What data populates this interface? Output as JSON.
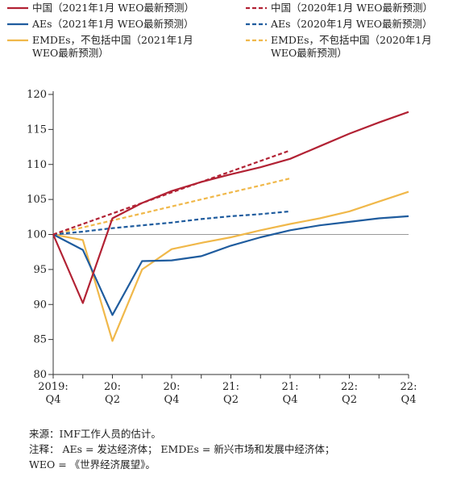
{
  "legend": [
    {
      "label": "中国（2021年1月 WEO最新预测）",
      "color": "#B22234",
      "dash": false
    },
    {
      "label": "中国（2020年1月 WEO最新预测）",
      "color": "#B22234",
      "dash": true
    },
    {
      "label": "AEs（2021年1月 WEO最新预测）",
      "color": "#1F5C9E",
      "dash": false
    },
    {
      "label": "AEs（2020年1月 WEO最新预测）",
      "color": "#1F5C9E",
      "dash": true
    },
    {
      "label": "EMDEs，不包括中国（2021年1月\nWEO最新预测）",
      "color": "#F0B84A",
      "dash": false
    },
    {
      "label": "EMDEs，不包括中国（2020年1月\nWEO最新预测）",
      "color": "#F0B84A",
      "dash": true
    }
  ],
  "chart_data": {
    "type": "line",
    "x": [
      "2019:Q4",
      "20:Q1",
      "20:Q2",
      "20:Q3",
      "20:Q4",
      "21:Q1",
      "21:Q2",
      "21:Q3",
      "21:Q4",
      "22:Q1",
      "22:Q2",
      "22:Q3",
      "22:Q4"
    ],
    "x_tick_labels": [
      {
        "index": 0,
        "top": "2019:",
        "bottom": "Q4"
      },
      {
        "index": 2,
        "top": "20:",
        "bottom": "Q2"
      },
      {
        "index": 4,
        "top": "20:",
        "bottom": "Q4"
      },
      {
        "index": 6,
        "top": "21:",
        "bottom": "Q2"
      },
      {
        "index": 8,
        "top": "21:",
        "bottom": "Q4"
      },
      {
        "index": 10,
        "top": "22:",
        "bottom": "Q2"
      },
      {
        "index": 12,
        "top": "22:",
        "bottom": "Q4"
      }
    ],
    "y_ticks": [
      "80",
      "85",
      "90",
      "95",
      "100",
      "105",
      "110",
      "115",
      "120"
    ],
    "ylim": [
      80,
      120
    ],
    "reference_line": 100,
    "series": [
      {
        "name": "中国（2021年1月 WEO最新预测）",
        "color": "#B22234",
        "dash": false,
        "values": [
          100,
          90.2,
          102.3,
          104.5,
          106.2,
          107.5,
          108.6,
          109.6,
          110.8,
          112.6,
          114.4,
          116.0,
          117.5
        ]
      },
      {
        "name": "中国（2020年1月 WEO最新预测）",
        "color": "#B22234",
        "dash": true,
        "values": [
          100,
          101.5,
          103.0,
          104.5,
          106.0,
          107.5,
          109.0,
          110.5,
          112.0,
          null,
          null,
          null,
          null
        ]
      },
      {
        "name": "AEs（2021年1月 WEO最新预测）",
        "color": "#1F5C9E",
        "dash": false,
        "values": [
          100,
          97.8,
          88.5,
          96.2,
          96.3,
          96.9,
          98.4,
          99.6,
          100.6,
          101.3,
          101.8,
          102.3,
          102.6
        ]
      },
      {
        "name": "AEs（2020年1月 WEO最新预测）",
        "color": "#1F5C9E",
        "dash": true,
        "values": [
          100,
          100.4,
          100.9,
          101.3,
          101.7,
          102.2,
          102.6,
          102.9,
          103.3,
          null,
          null,
          null,
          null
        ]
      },
      {
        "name": "EMDEs，不包括中国（2021年1月 WEO最新预测）",
        "color": "#F0B84A",
        "dash": false,
        "values": [
          100,
          99.2,
          84.8,
          95.0,
          97.9,
          98.8,
          99.6,
          100.6,
          101.5,
          102.3,
          103.3,
          104.7,
          106.1
        ]
      },
      {
        "name": "EMDEs，不包括中国（2020年1月 WEO最新预测）",
        "color": "#F0B84A",
        "dash": true,
        "values": [
          100,
          101.0,
          102.0,
          103.0,
          104.0,
          105.0,
          106.0,
          107.0,
          108.0,
          null,
          null,
          null,
          null
        ]
      }
    ]
  },
  "notes": {
    "source": "来源：IMF工作人员的估计。",
    "note1": "注释： AEs = 发达经济体； EMDEs = 新兴市场和发展中经济体；",
    "note2": "WEO = 《世界经济展望》。"
  }
}
